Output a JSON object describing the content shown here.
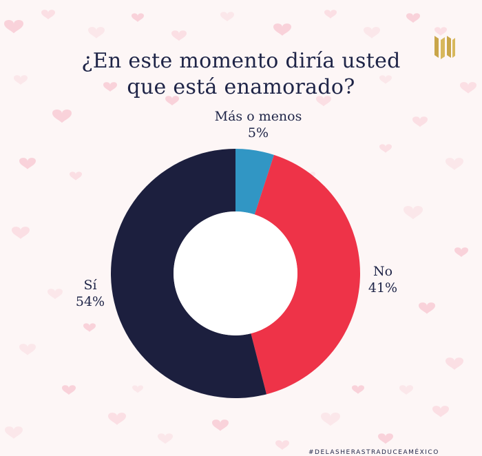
{
  "title_lines": [
    "¿En este momento diría usted",
    "que está enamorado?"
  ],
  "footer_hashtag": "#DELASHERASTRADUCEAMÉXICO",
  "logo_icon": "gold-bars-logo-icon",
  "chart_data": {
    "type": "pie",
    "donut": true,
    "title": "¿En este momento diría usted que está enamorado?",
    "slices": [
      {
        "label": "Más o menos",
        "value": 5,
        "value_label": "5%",
        "color": "#3196c4"
      },
      {
        "label": "No",
        "value": 41,
        "value_label": "41%",
        "color": "#ee3348"
      },
      {
        "label": "Sí",
        "value": 54,
        "value_label": "54%",
        "color": "#1c1f3e"
      }
    ]
  }
}
